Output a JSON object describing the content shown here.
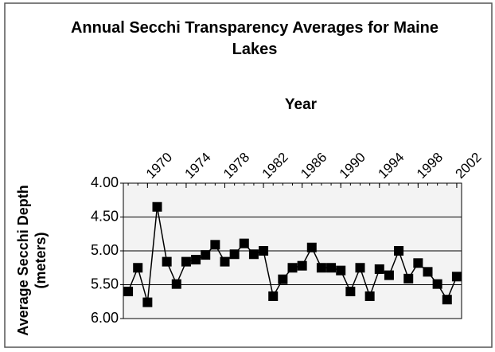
{
  "chart_data": {
    "type": "line",
    "title": "Annual Secchi Transparency Averages for Maine Lakes",
    "x_label": "Year",
    "y_label": "Average Secchi Depth (meters)",
    "x": [
      1968,
      1969,
      1970,
      1971,
      1972,
      1973,
      1974,
      1975,
      1976,
      1977,
      1978,
      1979,
      1980,
      1981,
      1982,
      1983,
      1984,
      1985,
      1986,
      1987,
      1988,
      1989,
      1990,
      1991,
      1992,
      1993,
      1994,
      1995,
      1996,
      1997,
      1998,
      1999,
      2000,
      2001,
      2002
    ],
    "series": [
      {
        "name": "Average Secchi Depth",
        "color": "#000000",
        "values": [
          5.6,
          5.25,
          5.76,
          4.35,
          5.16,
          5.49,
          5.16,
          5.13,
          5.06,
          4.91,
          5.16,
          5.05,
          4.89,
          5.05,
          5.0,
          5.67,
          5.42,
          5.25,
          5.22,
          4.95,
          5.25,
          5.25,
          5.29,
          5.6,
          5.25,
          5.67,
          5.27,
          5.36,
          5.0,
          5.41,
          5.18,
          5.31,
          5.49,
          5.72,
          5.38
        ]
      }
    ],
    "xlim": [
      1967.5,
      2002.5
    ],
    "xticks": [
      1970,
      1974,
      1978,
      1982,
      1986,
      1990,
      1994,
      1998,
      2002
    ],
    "ylim": [
      4,
      6
    ],
    "yticks": [
      {
        "value": 4,
        "label": "4.00"
      },
      {
        "value": 4.5,
        "label": "4.50"
      },
      {
        "value": 5,
        "label": "5.00"
      },
      {
        "value": 5.5,
        "label": "5.50"
      },
      {
        "value": 6,
        "label": "6.00"
      }
    ],
    "y_inverted": true,
    "x_axis_position": "top",
    "grid": true
  }
}
